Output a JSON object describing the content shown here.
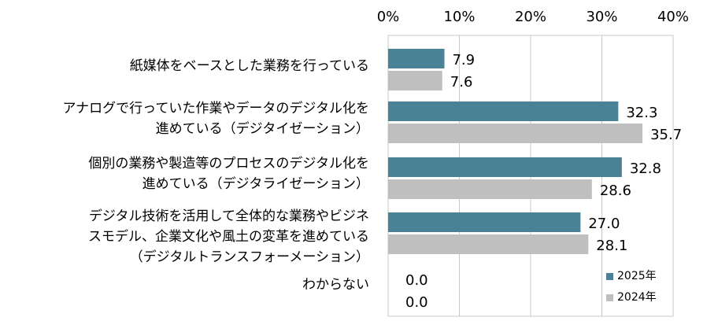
{
  "chart_data": {
    "type": "bar",
    "orientation": "horizontal",
    "categories": [
      [
        "紙媒体をベースとした業務を行っている"
      ],
      [
        "アナログで行っていた作業やデータのデジタル化を",
        "進めている（デジタイゼーション）"
      ],
      [
        "個別の業務や製造等のプロセスのデジタル化を",
        "進めている（デジタライゼーション）"
      ],
      [
        "デジタル技術を活用して全体的な業務やビジネ",
        "スモデル、企業文化や風土の変革を進めている",
        "（デジタルトランスフォーメーション）"
      ],
      [
        "わからない"
      ]
    ],
    "series": [
      {
        "name": "2025年",
        "values": [
          7.9,
          32.3,
          32.8,
          27.0,
          0.0
        ],
        "labels": [
          "7.9",
          "32.3",
          "32.8",
          "27.0",
          "0.0"
        ],
        "color": "#4a8197"
      },
      {
        "name": "2024年",
        "values": [
          7.6,
          35.7,
          28.6,
          28.1,
          0.0
        ],
        "labels": [
          "7.6",
          "35.7",
          "28.6",
          "28.1",
          "0.0"
        ],
        "color": "#bfbfbf"
      }
    ],
    "xlim": [
      0,
      40
    ],
    "x_ticks": [
      "0%",
      "10%",
      "20%",
      "30%",
      "40%"
    ],
    "x_tick_values": [
      0,
      10,
      20,
      30,
      40
    ],
    "grid": true,
    "axis_position": "top",
    "legend_position": "bottom-right"
  }
}
